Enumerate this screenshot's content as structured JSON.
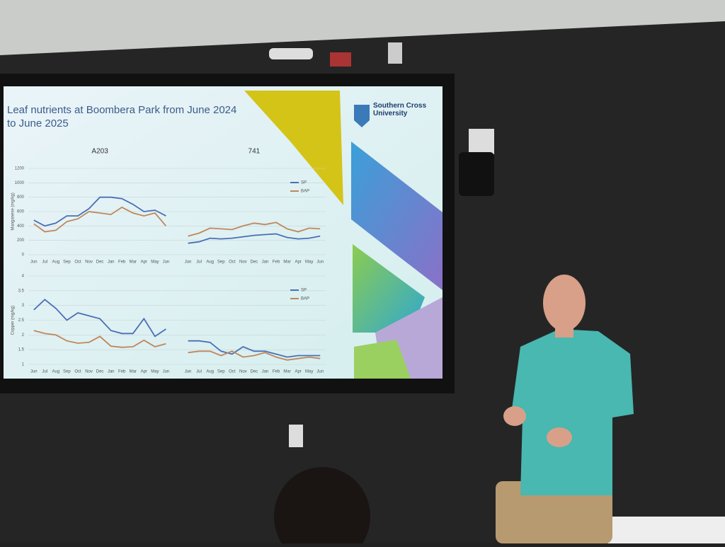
{
  "slide": {
    "title": "Leaf nutrients at Boombera Park from June 2024 to June 2025",
    "logo": "Southern Cross University"
  },
  "chart_data": [
    {
      "type": "line",
      "y_label": "Manganese (mg/kg)",
      "annotations": [
        "A203",
        "741"
      ],
      "categories": [
        "Jun",
        "Jul",
        "Aug",
        "Sep",
        "Oct",
        "Nov",
        "Dec",
        "Jan",
        "Feb",
        "Mar",
        "Apr",
        "May",
        "Jun",
        null,
        "Jun",
        "Jul",
        "Aug",
        "Sep",
        "Oct",
        "Nov",
        "Dec",
        "Jan",
        "Feb",
        "Mar",
        "Apr",
        "May",
        "Jun"
      ],
      "series": [
        {
          "name": "SP",
          "color": "#4a6fb5",
          "values": [
            480,
            400,
            440,
            540,
            540,
            640,
            800,
            800,
            780,
            700,
            600,
            620,
            540,
            null,
            160,
            180,
            230,
            220,
            230,
            250,
            270,
            280,
            290,
            240,
            220,
            230,
            260
          ]
        },
        {
          "name": "BAP",
          "color": "#c0875a",
          "values": [
            430,
            320,
            340,
            460,
            500,
            600,
            580,
            560,
            660,
            580,
            540,
            580,
            400,
            null,
            260,
            300,
            370,
            360,
            350,
            400,
            440,
            420,
            450,
            360,
            320,
            370,
            360
          ]
        }
      ],
      "ylim": [
        0,
        1200
      ],
      "yticks": [
        0,
        200,
        400,
        600,
        800,
        1000,
        1200
      ],
      "grid": true,
      "legend": "right"
    },
    {
      "type": "line",
      "y_label": "Copper (mg/kg)",
      "categories": [
        "Jun",
        "Jul",
        "Aug",
        "Sep",
        "Oct",
        "Nov",
        "Dec",
        "Jan",
        "Feb",
        "Mar",
        "Apr",
        "May",
        "Jun",
        null,
        "Jun",
        "Jul",
        "Aug",
        "Sep",
        "Oct",
        "Nov",
        "Dec",
        "Jan",
        "Feb",
        "Mar",
        "Apr",
        "May",
        "Jun"
      ],
      "series": [
        {
          "name": "SP",
          "color": "#4a6fb5",
          "values": [
            2.85,
            3.2,
            2.9,
            2.5,
            2.75,
            2.65,
            2.55,
            2.15,
            2.05,
            2.05,
            2.55,
            1.95,
            2.2,
            null,
            1.8,
            1.8,
            1.75,
            1.45,
            1.35,
            1.6,
            1.45,
            1.45,
            1.35,
            1.25,
            1.3,
            1.3,
            1.3
          ]
        },
        {
          "name": "BAP",
          "color": "#c0875a",
          "values": [
            2.15,
            2.05,
            2,
            1.8,
            1.72,
            1.75,
            1.95,
            1.62,
            1.58,
            1.6,
            1.82,
            1.6,
            1.7,
            null,
            1.4,
            1.45,
            1.45,
            1.3,
            1.45,
            1.25,
            1.3,
            1.4,
            1.25,
            1.15,
            1.2,
            1.25,
            1.2
          ]
        }
      ],
      "ylim": [
        1,
        4
      ],
      "yticks": [
        1,
        1.5,
        2,
        2.5,
        3,
        3.5,
        4
      ],
      "grid": true,
      "legend": "right"
    }
  ]
}
